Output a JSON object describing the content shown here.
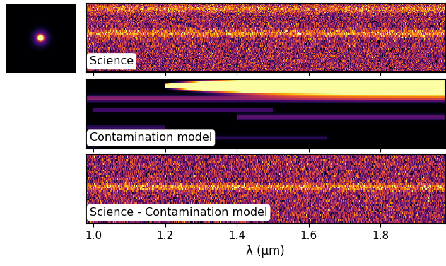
{
  "chart_data": {
    "type": "image",
    "xlabel": "λ (μm)",
    "xlim": [
      0.98,
      1.98
    ],
    "xticks": [
      {
        "value": 1.0,
        "label": "1.0"
      },
      {
        "value": 1.2,
        "label": "1.2"
      },
      {
        "value": 1.4,
        "label": "1.4"
      },
      {
        "value": 1.6,
        "label": "1.6"
      },
      {
        "value": 1.8,
        "label": "1.8"
      }
    ],
    "tick_labels": "x",
    "panels": [
      {
        "label": "Science",
        "traces": [
          {
            "y": 0.08,
            "start": 0.98,
            "end": 1.98,
            "flux": 0.55,
            "width": [
              0.04,
              0.04
            ]
          },
          {
            "y": 0.44,
            "start": 0.98,
            "end": 1.98,
            "flux": 0.65,
            "width": [
              0.035,
              0.035
            ]
          }
        ]
      },
      {
        "label": "Contamination model",
        "traces": [
          {
            "y": 0.1,
            "start": 1.2,
            "end": 1.98,
            "flux": 3.0,
            "width": [
              0.015,
              0.08
            ]
          },
          {
            "y": 0.28,
            "start": 0.98,
            "end": 1.98,
            "flux": 0.4,
            "width": [
              0.03,
              0.03
            ]
          },
          {
            "y": 0.45,
            "start": 1.0,
            "end": 1.5,
            "flux": 0.25,
            "width": [
              0.02,
              0.02
            ]
          },
          {
            "y": 0.55,
            "start": 1.4,
            "end": 1.98,
            "flux": 0.3,
            "width": [
              0.025,
              0.025
            ]
          },
          {
            "y": 0.7,
            "start": 0.98,
            "end": 1.2,
            "flux": 0.2,
            "width": [
              0.02,
              0.02
            ]
          },
          {
            "y": 0.85,
            "start": 1.2,
            "end": 1.65,
            "flux": 0.15,
            "width": [
              0.02,
              0.02
            ]
          },
          {
            "y": 0.95,
            "start": 0.98,
            "end": 1.02,
            "flux": 0.3,
            "width": [
              0.02,
              0.02
            ]
          }
        ]
      },
      {
        "label": "Science - Contamination model",
        "traces": [
          {
            "y": 0.48,
            "start": 0.98,
            "end": 1.98,
            "flux": 0.65,
            "width": [
              0.035,
              0.035
            ]
          }
        ]
      }
    ]
  }
}
